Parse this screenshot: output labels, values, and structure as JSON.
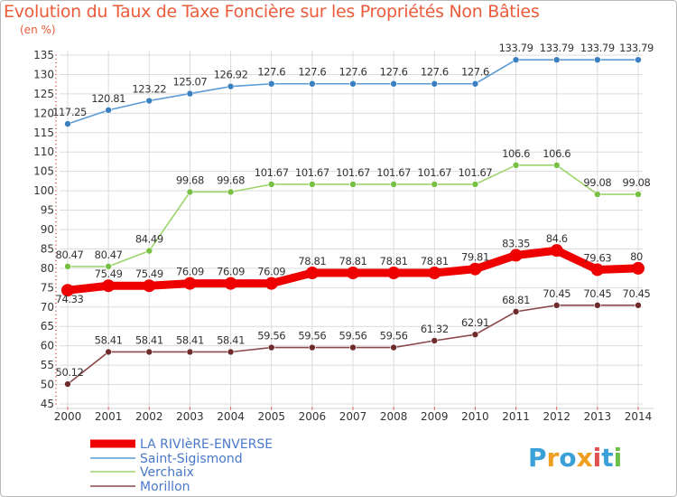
{
  "title": "Evolution du Taux de Taxe Foncière sur les Propriétés Non Bâties",
  "ylabel": "(en %)",
  "logo": {
    "letters": [
      "P",
      "r",
      "o",
      "x",
      "i",
      "t",
      "i"
    ],
    "colors": [
      "#3aa0d8",
      "#f0a020",
      "#3aa0d8",
      "#f0a020",
      "#e05050",
      "#3aa0d8",
      "#6cc04a"
    ]
  },
  "chart_data": {
    "type": "line",
    "x": [
      "2000",
      "2001",
      "2002",
      "2003",
      "2004",
      "2005",
      "2006",
      "2007",
      "2008",
      "2009",
      "2010",
      "2011",
      "2012",
      "2013",
      "2014"
    ],
    "ylim": [
      45,
      135
    ],
    "yticks": [
      45,
      50,
      55,
      60,
      65,
      70,
      75,
      80,
      85,
      90,
      95,
      100,
      105,
      110,
      115,
      120,
      125,
      130,
      135
    ],
    "grid": true,
    "legend_position": "bottom-left",
    "series": [
      {
        "name": "Saint-Sigismond",
        "color": "#5b9bd5",
        "point_color": "#3a7fc0",
        "values": [
          117.25,
          120.81,
          123.22,
          125.07,
          126.92,
          127.6,
          127.6,
          127.6,
          127.6,
          127.6,
          127.6,
          133.79,
          133.79,
          133.79,
          133.79
        ],
        "labels": [
          "117.25",
          "120.81",
          "123.22",
          "125.07",
          "126.92",
          "127.6",
          "127.6",
          "127.6",
          "127.6",
          "127.6",
          "127.6",
          "133.79",
          "133.79",
          "133.79",
          "133.79"
        ]
      },
      {
        "name": "Verchaix",
        "color": "#9cd56b",
        "point_color": "#77c043",
        "values": [
          80.47,
          80.47,
          84.49,
          99.68,
          99.68,
          101.67,
          101.67,
          101.67,
          101.67,
          101.67,
          101.67,
          106.6,
          106.6,
          99.08,
          99.08
        ],
        "labels": [
          "80.47",
          "80.47",
          "84.49",
          "99.68",
          "99.68",
          "101.67",
          "101.67",
          "101.67",
          "101.67",
          "101.67",
          "101.67",
          "106.6",
          "106.6",
          "99.08",
          "99.08"
        ]
      },
      {
        "name": "Morillon",
        "color": "#8a4a4a",
        "point_color": "#6e2b2b",
        "values": [
          50.12,
          58.41,
          58.41,
          58.41,
          58.41,
          59.56,
          59.56,
          59.56,
          59.56,
          61.32,
          62.91,
          68.81,
          70.45,
          70.45,
          70.45
        ],
        "labels": [
          "50.12",
          "58.41",
          "58.41",
          "58.41",
          "58.41",
          "59.56",
          "59.56",
          "59.56",
          "59.56",
          "61.32",
          "62.91",
          "68.81",
          "70.45",
          "70.45",
          "70.45"
        ]
      },
      {
        "name": "LA RIVIèRE-ENVERSE",
        "color": "#ee0000",
        "point_color": "#ee0000",
        "thick": true,
        "values": [
          74.33,
          75.49,
          75.49,
          76.09,
          76.09,
          76.09,
          78.81,
          78.81,
          78.81,
          78.81,
          79.81,
          83.35,
          84.6,
          79.63,
          80
        ],
        "labels": [
          "74.33",
          "75.49",
          "75.49",
          "76.09",
          "76.09",
          "76.09",
          "78.81",
          "78.81",
          "78.81",
          "78.81",
          "79.81",
          "83.35",
          "84.6",
          "79.63",
          "80"
        ]
      }
    ],
    "legend": [
      "LA RIVIèRE-ENVERSE",
      "Saint-Sigismond",
      "Verchaix",
      "Morillon"
    ]
  }
}
